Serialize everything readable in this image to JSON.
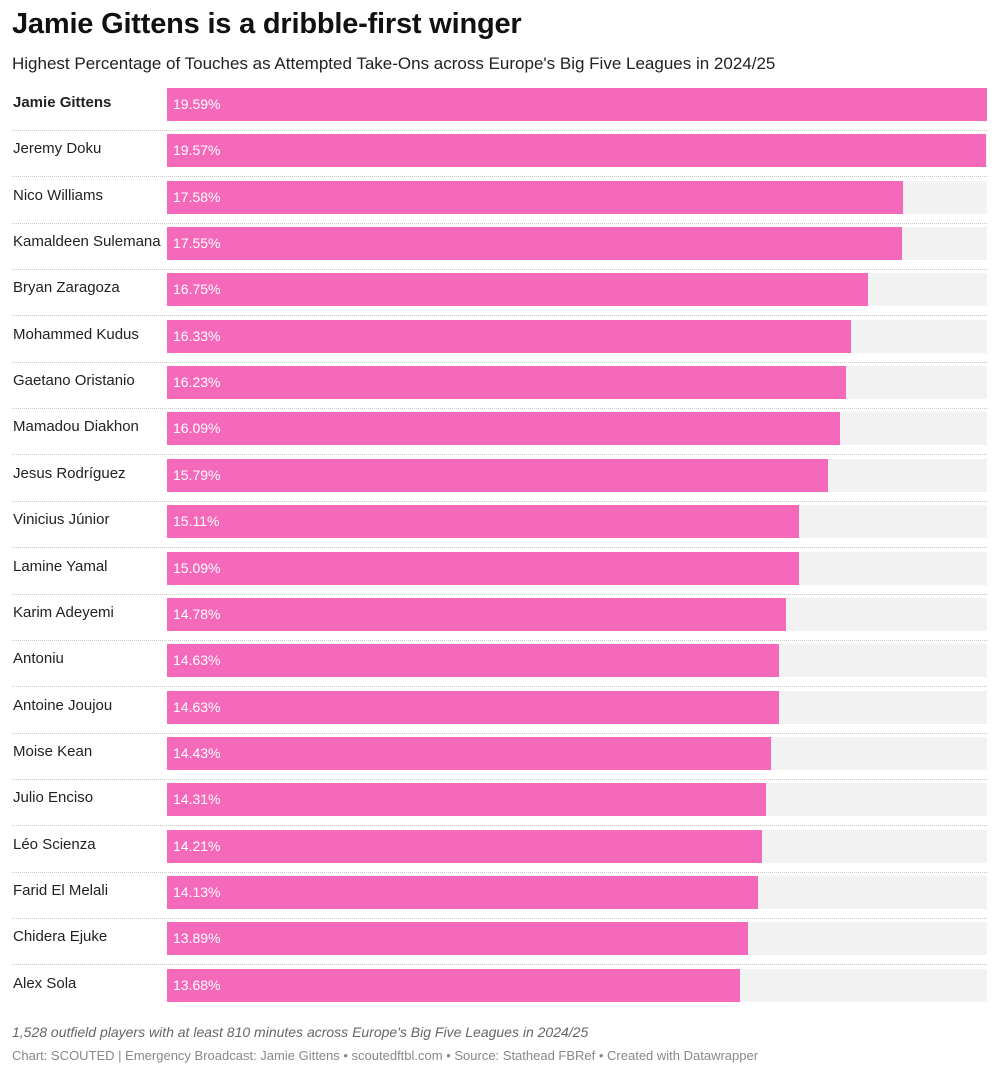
{
  "chart_data": {
    "type": "bar",
    "orientation": "horizontal",
    "title": "Jamie Gittens is a dribble-first winger",
    "subtitle": "Highest Percentage of Touches as Attempted Take-Ons across Europe's Big Five Leagues in 2024/25",
    "value_suffix": "%",
    "xlim": [
      0,
      19.59
    ],
    "highlight": "Jamie Gittens",
    "bar_color": "#f569bb",
    "track_color": "#f2f2f2",
    "categories": [
      "Jamie Gittens",
      "Jeremy Doku",
      "Nico Williams",
      "Kamaldeen Sulemana",
      "Bryan Zaragoza",
      "Mohammed Kudus",
      "Gaetano Oristanio",
      "Mamadou Diakhon",
      "Jesus Rodríguez",
      "Vinicius Júnior",
      "Lamine Yamal",
      "Karim Adeyemi",
      "Antoniu",
      "Antoine Joujou",
      "Moise Kean",
      "Julio Enciso",
      "Léo Scienza",
      "Farid El Melali",
      "Chidera Ejuke",
      "Alex Sola"
    ],
    "values": [
      19.59,
      19.57,
      17.58,
      17.55,
      16.75,
      16.33,
      16.23,
      16.09,
      15.79,
      15.11,
      15.09,
      14.78,
      14.63,
      14.63,
      14.43,
      14.31,
      14.21,
      14.13,
      13.89,
      13.68
    ],
    "value_labels": [
      "19.59%",
      "19.57%",
      "17.58%",
      "17.55%",
      "16.75%",
      "16.33%",
      "16.23%",
      "16.09%",
      "15.79%",
      "15.11%",
      "15.09%",
      "14.78%",
      "14.63%",
      "14.63%",
      "14.43%",
      "14.31%",
      "14.21%",
      "14.13%",
      "13.89%",
      "13.68%"
    ]
  },
  "notes": "1,528 outfield players with at least 810 minutes across Europe's Big Five Leagues in 2024/25",
  "footer": "Chart: SCOUTED | Emergency Broadcast: Jamie Gittens • scoutedftbl.com • Source: Stathead FBRef • Created with Datawrapper"
}
